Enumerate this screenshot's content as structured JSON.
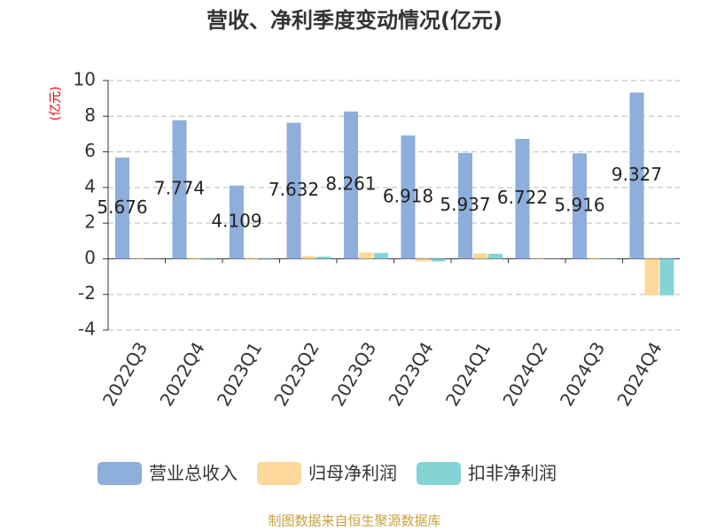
{
  "chart_data": {
    "type": "bar",
    "title": "营收、净利季度变动情况(亿元)",
    "y_label": "(亿元)",
    "categories": [
      "2022Q3",
      "2022Q4",
      "2023Q1",
      "2023Q2",
      "2023Q3",
      "2023Q4",
      "2024Q1",
      "2024Q2",
      "2024Q3",
      "2024Q4"
    ],
    "series": [
      {
        "name": "营业总收入",
        "color": "#8eaedb",
        "values": [
          5.676,
          7.774,
          4.109,
          7.632,
          8.261,
          6.918,
          5.937,
          6.722,
          5.916,
          9.327
        ],
        "show_labels": true
      },
      {
        "name": "归母净利润",
        "color": "#fdd89a",
        "values": [
          0.02,
          0.05,
          0.05,
          0.15,
          0.35,
          -0.15,
          0.3,
          0.02,
          0.05,
          -2.05
        ]
      },
      {
        "name": "扣非净利润",
        "color": "#84d4d6",
        "values": [
          0.01,
          -0.05,
          -0.05,
          0.12,
          0.33,
          -0.15,
          0.28,
          0.01,
          0.03,
          -2.05
        ]
      }
    ],
    "ylim": [
      -4,
      10
    ],
    "yticks": [
      -4,
      -2,
      0,
      2,
      4,
      6,
      8,
      10
    ],
    "grid": true,
    "source": "制图数据来自恒生聚源数据库"
  }
}
